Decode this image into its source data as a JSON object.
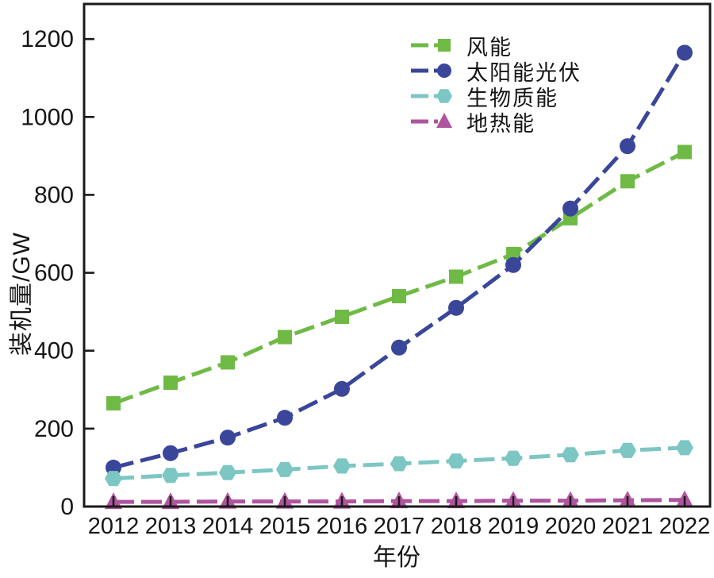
{
  "figure": {
    "background": "#ffffff",
    "axis_color": "#1a1a1a",
    "text_color": "#161616"
  },
  "chart_data": {
    "type": "line",
    "title": "",
    "xlabel": "年份",
    "ylabel": "装机量/GW",
    "x": [
      2012,
      2013,
      2014,
      2015,
      2016,
      2017,
      2018,
      2019,
      2020,
      2021,
      2022
    ],
    "ylim": [
      0,
      1290
    ],
    "yticks": [
      0,
      200,
      400,
      600,
      800,
      1000,
      1200
    ],
    "grid": false,
    "legend_position": "top-right-inside",
    "line_style": "dashed",
    "series": [
      {
        "key": "wind",
        "name": "风能",
        "color": "#6fba45",
        "marker": "square",
        "values": [
          265,
          318,
          370,
          435,
          487,
          540,
          590,
          648,
          740,
          835,
          910
        ]
      },
      {
        "key": "solar-pv",
        "name": "太阳能光伏",
        "color": "#3a4699",
        "marker": "circle",
        "values": [
          100,
          137,
          177,
          228,
          302,
          408,
          510,
          620,
          765,
          925,
          1165
        ]
      },
      {
        "key": "biomass",
        "name": "生物质能",
        "color": "#7cc6c3",
        "marker": "hexagon",
        "values": [
          72,
          80,
          87,
          95,
          104,
          110,
          117,
          124,
          133,
          144,
          151
        ]
      },
      {
        "key": "geothermal",
        "name": "地热能",
        "color": "#b0549f",
        "marker": "triangle",
        "values": [
          12,
          12,
          13,
          13,
          13,
          14,
          14,
          15,
          15,
          16,
          17
        ]
      }
    ]
  }
}
